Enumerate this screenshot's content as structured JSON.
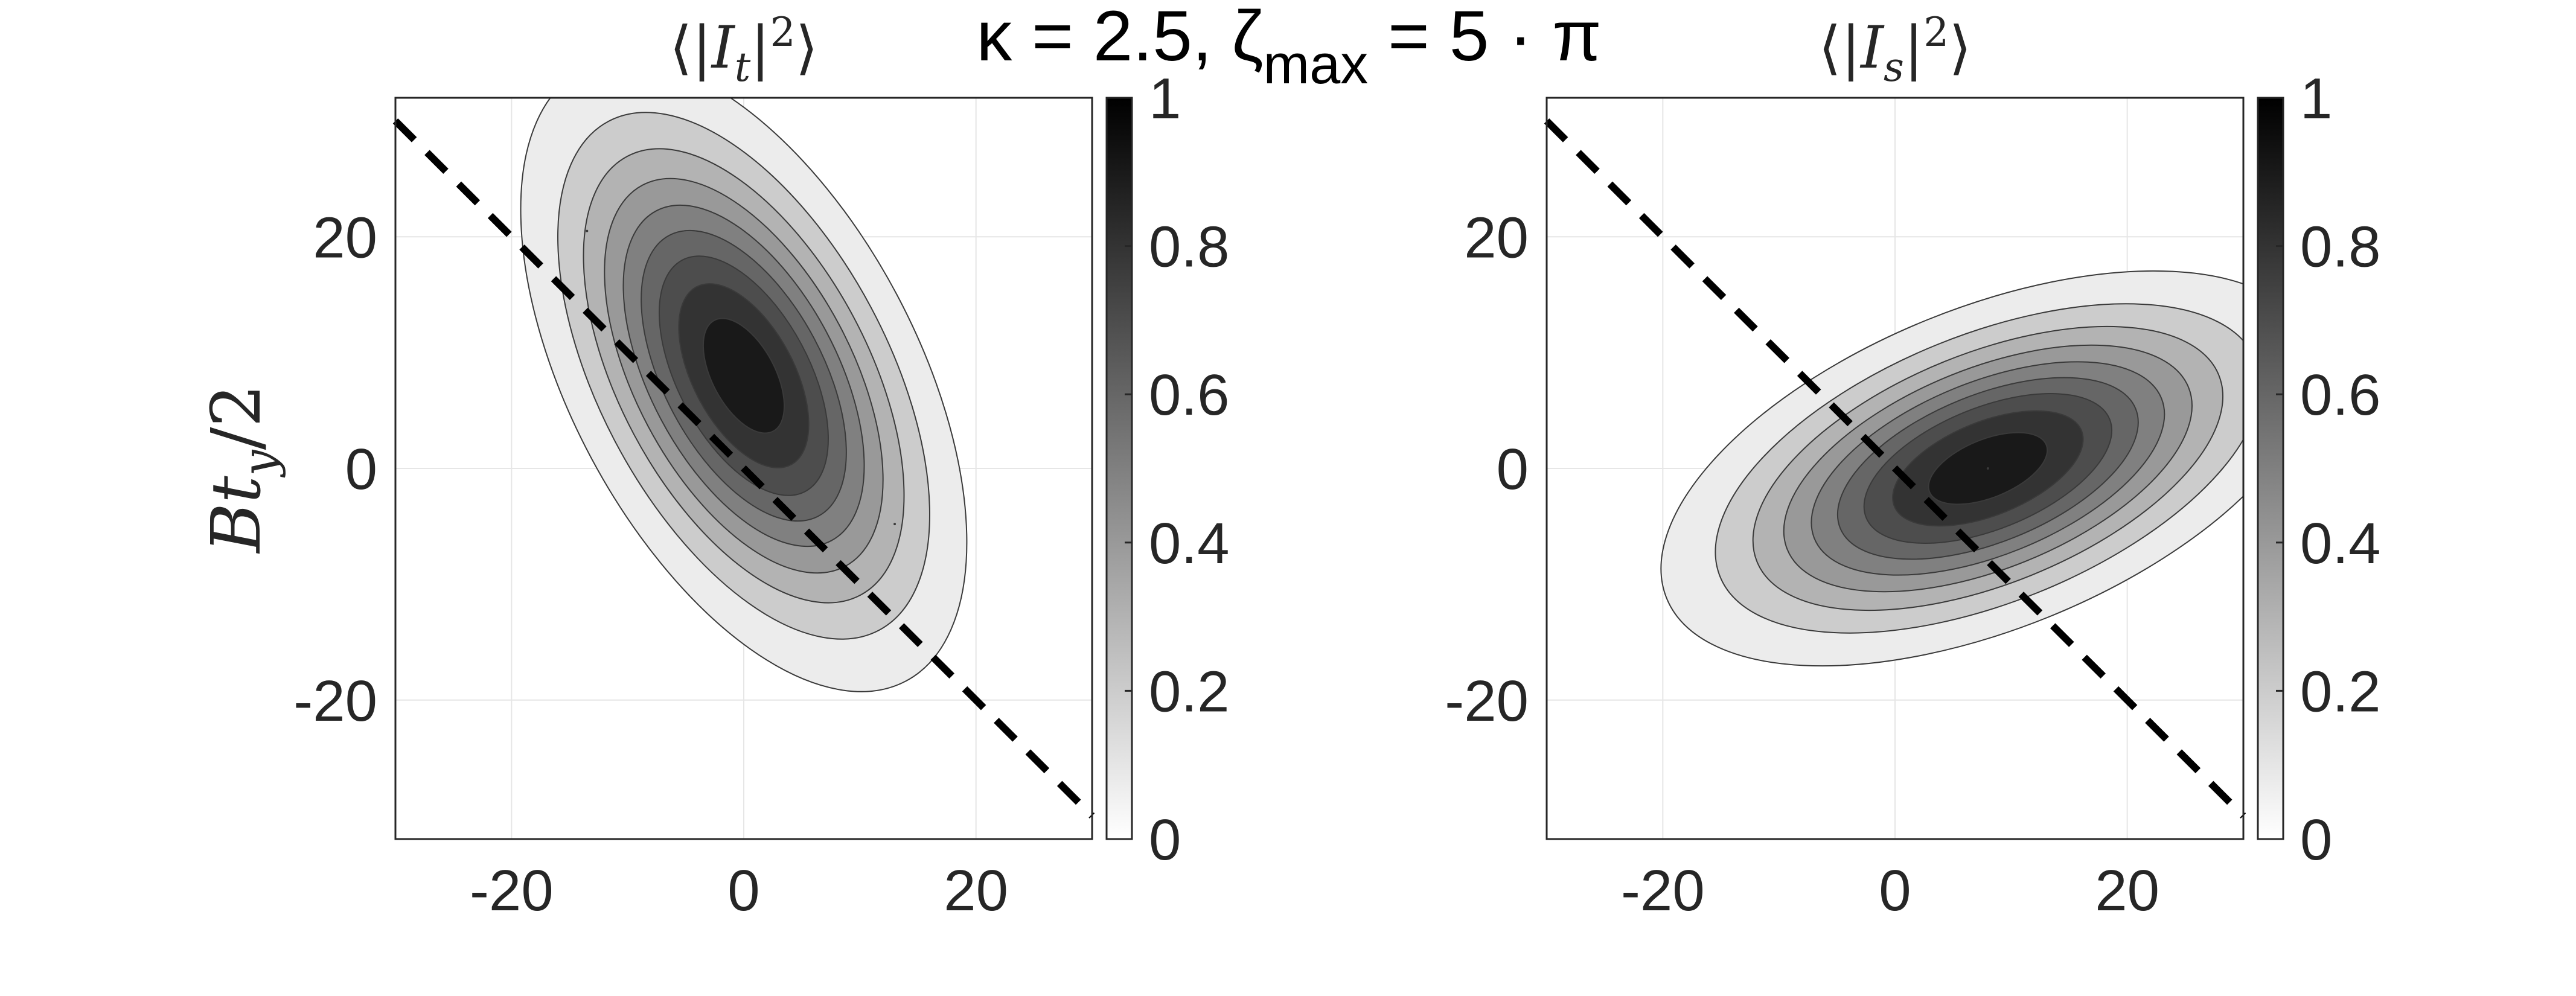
{
  "figure": {
    "title": "κ = 2.5, ζmax = 5 · π",
    "title_parts": {
      "prefix": "κ = 2.5, ζ",
      "subscript": "max",
      "suffix": " = 5 · π"
    },
    "background": "#ffffff"
  },
  "chart_data": [
    {
      "type": "heatmap",
      "title": "⟨|It|²⟩",
      "title_parts": {
        "open": "⟨|",
        "var": "I",
        "sub": "t",
        "close": "|",
        "sup": "2",
        "end": "⟩"
      },
      "xlabel": "",
      "ylabel": "Bty/2",
      "ylabel_parts": {
        "main": "Bt",
        "sub": "y",
        "tail": "/2"
      },
      "xlim": [
        -30,
        30
      ],
      "ylim": [
        -32,
        32
      ],
      "xticks": [
        -20,
        0,
        20
      ],
      "yticks": [
        -20,
        0,
        20
      ],
      "grid": true,
      "colorbar": {
        "min": 0,
        "max": 1,
        "ticks": [
          "0",
          "0.2",
          "0.4",
          "0.6",
          "0.8",
          "1"
        ],
        "colormap": "white-to-black"
      },
      "contour_levels": [
        0.1,
        0.2,
        0.3,
        0.4,
        0.5,
        0.6,
        0.7,
        0.8,
        0.9
      ],
      "dashed_line": {
        "points": [
          [
            -30,
            30
          ],
          [
            30,
            -30
          ]
        ],
        "color": "#000000"
      },
      "peaks": [
        {
          "cx": 0,
          "cy": 8,
          "a": 7,
          "b": 14,
          "angle": -28,
          "peak": 0.97
        },
        {
          "cx": -13.5,
          "cy": 20.5,
          "a": 2.6,
          "b": 8.5,
          "angle": 0,
          "peak": 0.1
        },
        {
          "cx": 13,
          "cy": -4.8,
          "a": 2.6,
          "b": 8.5,
          "angle": 0,
          "peak": 0.1
        }
      ]
    },
    {
      "type": "heatmap",
      "title": "⟨|Is|²⟩",
      "title_parts": {
        "open": "⟨|",
        "var": "I",
        "sub": "s",
        "close": "|",
        "sup": "2",
        "end": "⟩"
      },
      "xlabel": "",
      "ylabel": "",
      "xlim": [
        -30,
        30
      ],
      "ylim": [
        -32,
        32
      ],
      "xticks": [
        -20,
        0,
        20
      ],
      "yticks": [
        -20,
        0,
        20
      ],
      "grid": true,
      "colorbar": {
        "min": 0,
        "max": 1,
        "ticks": [
          "0",
          "0.2",
          "0.4",
          "0.6",
          "0.8",
          "1"
        ],
        "colormap": "white-to-black"
      },
      "contour_levels": [
        0.1,
        0.2,
        0.3,
        0.4,
        0.5,
        0.6,
        0.7,
        0.8,
        0.9
      ],
      "dashed_line": {
        "points": [
          [
            -30,
            30
          ],
          [
            30,
            -30
          ]
        ],
        "color": "#000000"
      },
      "peaks": [
        {
          "cx": 8,
          "cy": 0,
          "a": 14,
          "b": 6.5,
          "angle": -22,
          "peak": 0.97
        },
        {
          "cx": 8,
          "cy": 0,
          "a": 23,
          "b": 8.5,
          "angle": -28,
          "peak": 0.1
        }
      ]
    }
  ]
}
